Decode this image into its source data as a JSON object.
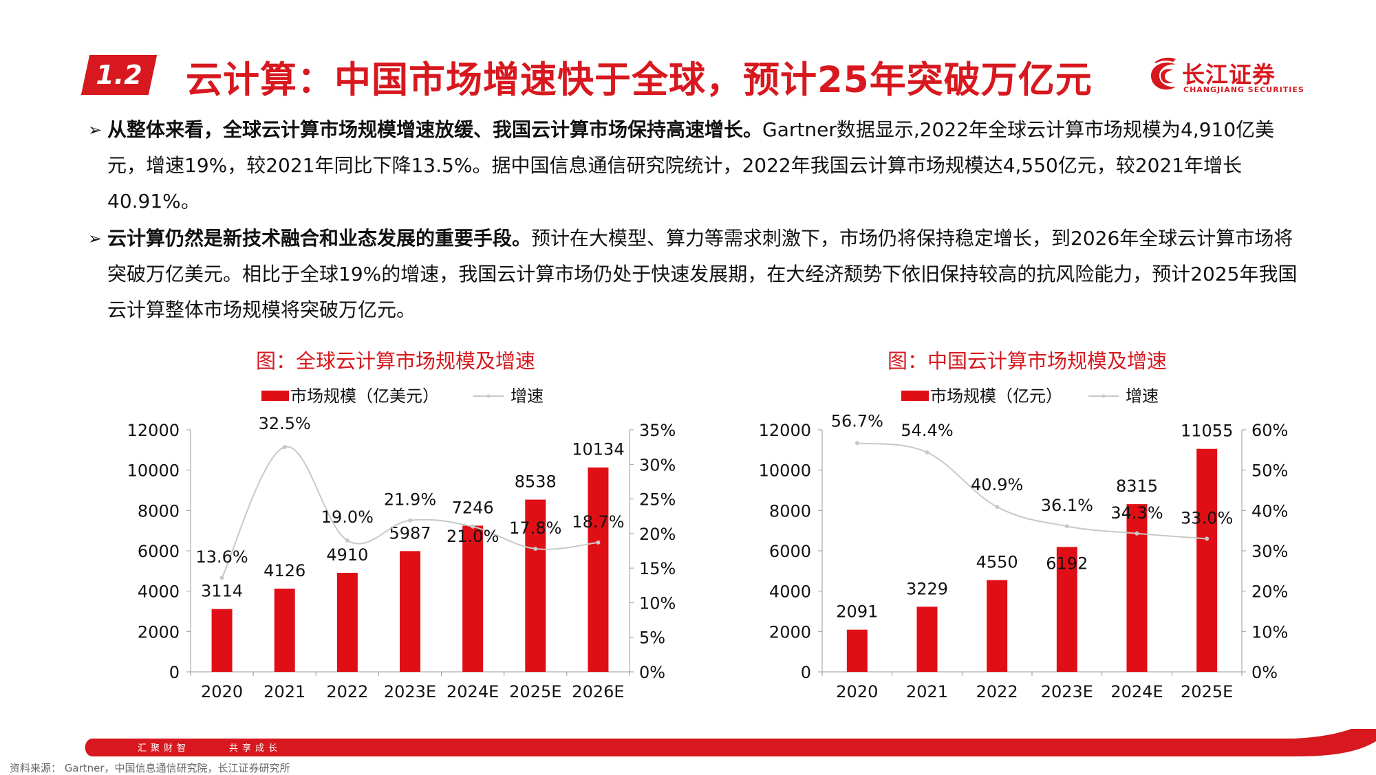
{
  "header": {
    "section_number": "1.2",
    "title": "云计算：中国市场增速快于全球，预计25年突破万亿元",
    "logo_cn": "长江证券",
    "logo_en": "CHANGJIANG SECURITIES"
  },
  "bullets": [
    {
      "bold": "从整体来看，全球云计算市场规模增速放缓、我国云计算市场保持高速增长。",
      "text": "Gartner数据显示,2022年全球云计算市场规模为4,910亿美元，增速19%，较2021年同比下降13.5%。据中国信息通信研究院统计，2022年我国云计算市场规模达4,550亿元，较2021年增长40.91%。"
    },
    {
      "bold": "云计算仍然是新技术融合和业态发展的重要手段。",
      "text": "预计在大模型、算力等需求刺激下，市场仍将保持稳定增长，到2026年全球云计算市场将突破万亿美元。相比于全球19%的增速，我国云计算市场仍处于快速发展期，在大经济颓势下依旧保持较高的抗风险能力，预计2025年我国云计算整体市场规模将突破万亿元。"
    }
  ],
  "chart_data": [
    {
      "type": "bar",
      "title": "图：全球云计算市场规模及增速",
      "categories": [
        "2020",
        "2021",
        "2022",
        "2023E",
        "2024E",
        "2025E",
        "2026E"
      ],
      "series": [
        {
          "name": "市场规模（亿美元）",
          "type": "bar",
          "axis": "left",
          "values": [
            3114,
            4126,
            4910,
            5987,
            7246,
            8538,
            10134
          ],
          "labels": [
            "3114",
            "4126",
            "4910",
            "5987",
            "7246",
            "8538",
            "10134"
          ]
        },
        {
          "name": "增速",
          "type": "line",
          "axis": "right",
          "values": [
            13.6,
            32.5,
            19.0,
            21.9,
            21.0,
            17.8,
            18.7
          ],
          "labels": [
            "13.6%",
            "32.5%",
            "19.0%",
            "21.9%",
            "21.0%",
            "17.8%",
            "18.7%"
          ]
        }
      ],
      "ylim": [
        0,
        12000
      ],
      "y2lim": [
        0,
        35
      ],
      "yticks": [
        "0",
        "2000",
        "4000",
        "6000",
        "8000",
        "10000",
        "12000"
      ],
      "y2ticks": [
        "0%",
        "5%",
        "10%",
        "15%",
        "20%",
        "25%",
        "30%",
        "35%"
      ],
      "legend": "top",
      "grid": false
    },
    {
      "type": "bar",
      "title": "图：中国云计算市场规模及增速",
      "categories": [
        "2020",
        "2021",
        "2022",
        "2023E",
        "2024E",
        "2025E"
      ],
      "series": [
        {
          "name": "市场规模（亿元）",
          "type": "bar",
          "axis": "left",
          "values": [
            2091,
            3229,
            4550,
            6192,
            8315,
            11055
          ],
          "labels": [
            "2091",
            "3229",
            "4550",
            "6192",
            "8315",
            "11055"
          ]
        },
        {
          "name": "增速",
          "type": "line",
          "axis": "right",
          "values": [
            56.7,
            54.4,
            40.9,
            36.1,
            34.3,
            33.0
          ],
          "labels": [
            "56.7%",
            "54.4%",
            "40.9%",
            "36.1%",
            "34.3%",
            "33.0%"
          ]
        }
      ],
      "ylim": [
        0,
        12000
      ],
      "y2lim": [
        0,
        60
      ],
      "yticks": [
        "0",
        "2000",
        "4000",
        "6000",
        "8000",
        "10000",
        "12000"
      ],
      "y2ticks": [
        "0%",
        "10%",
        "20%",
        "30%",
        "40%",
        "50%",
        "60%"
      ],
      "legend": "top",
      "grid": false
    }
  ],
  "footer": {
    "slogan_left": "汇聚财智",
    "slogan_right": "共享成长",
    "source": "资料来源： Gartner，中国信息通信研究院，长江证券研究所"
  },
  "colors": {
    "accent": "#d7181e",
    "bar": "#e00f16",
    "line": "#c8c8c8"
  }
}
